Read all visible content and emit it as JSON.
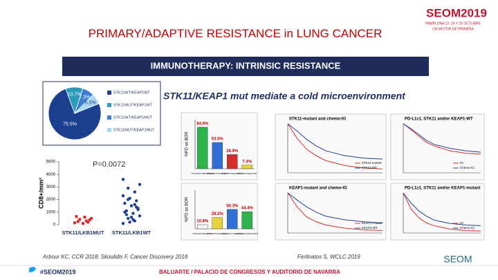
{
  "header": {
    "title_part1": "PRIMARY/ADAPTIVE",
    "title_part2": "RESISTANCE in LUNG CANCER"
  },
  "logo": {
    "name": "SEOM2019",
    "line1": "PAMPLONA 23, 24 Y 25 OCTUBRE",
    "line2": "UN MOTOR DE PRIMERA"
  },
  "banner": "IMMUNOTHERAPY: INTRINSIC RESISTANCE",
  "subtitle": "STK11/KEAP1 mut mediate a cold microenvironment",
  "citations": [
    "Arbour KC, CCR 2018; Skoulidis F, Cancer Discovery 2018",
    "Ferlinatos S, WCLC 2019"
  ],
  "footer": {
    "hashtag": "#SEOM2019",
    "venue": "BALUARTE / PALACIO DE CONGRESOS Y AUDITORIO DE NAVARRA",
    "brand": "SEOM"
  },
  "chart_data": [
    {
      "type": "pie",
      "categories": [
        "STK11WT/KEAP1WT",
        "STK11MUT/KEAP1WT",
        "STK11WT/KEAP1MUT",
        "STK11MUT/KEAP1MUT"
      ],
      "values": [
        75.5,
        10.7,
        7.3,
        6.5
      ],
      "value_labels": [
        "75.5%",
        "10.7%",
        "7.3%",
        "6.5%"
      ],
      "colors": [
        "#1d3f8f",
        "#2a9bb8",
        "#3c7fd0",
        "#a8d8f0"
      ]
    },
    {
      "type": "bar",
      "ylabel": "%PD as BOR",
      "categories": [
        "STK11MUT/KEAP1MUT",
        "STK11MUT/KEAP1WT",
        "STK11WT/KEAP1MUT",
        "STK11WT/KEAP1WT"
      ],
      "values": [
        84.6,
        53.5,
        28.9,
        7.4
      ],
      "value_labels": [
        "84.6%",
        "53.5%",
        "28.9%",
        "7.4%"
      ],
      "colors": [
        "#2cb34a",
        "#2f6fd8",
        "#d92b2b",
        "#e8d23a"
      ],
      "ylim": [
        0,
        100
      ]
    },
    {
      "type": "bar",
      "ylabel": "%PD as BOR",
      "categories": [
        "STK11WT/KEAP1WT",
        "STK11WT/KEAP1MUT",
        "STK11MUT/KEAP1WT",
        "STK11MUT/KEAP1MUT"
      ],
      "values": [
        10.8,
        29.2,
        50.3,
        44.4
      ],
      "value_labels": [
        "10.8%",
        "29.2%",
        "50.3%",
        "44.4%"
      ],
      "colors": [
        "#f2f2f2",
        "#e8d23a",
        "#2f6fd8",
        "#2cb34a"
      ],
      "ylim": [
        0,
        100
      ]
    },
    {
      "type": "strip",
      "ylabel": "CD8+/mm²",
      "annotation": "P=0.0072",
      "categories": [
        "STK11/LKB1MUT",
        "STK11/LKB1WT"
      ],
      "colors": [
        "#d92b2b",
        "#1d3f8f"
      ],
      "values": [
        [
          150,
          300,
          420,
          500,
          600,
          250,
          380,
          100,
          650,
          200
        ],
        [
          100,
          300,
          500,
          700,
          900,
          1100,
          1300,
          1500,
          1700,
          1900,
          2100,
          2300,
          2600,
          2900,
          3200,
          400,
          800,
          1200,
          600,
          1000,
          1400,
          200,
          3600,
          1600,
          2000
        ]
      ],
      "ylim": [
        0,
        5000
      ],
      "yticks": [
        0,
        1000,
        2000,
        3000,
        4000,
        5000
      ]
    },
    {
      "type": "km",
      "title": "STK11-mutant and chemo-IO",
      "x": [
        0,
        3,
        6,
        9,
        12,
        18,
        24,
        30
      ],
      "series": [
        {
          "name": "STK11-mutant",
          "color": "#d92b2b",
          "values": [
            100,
            70,
            48,
            35,
            25,
            15,
            10,
            8
          ]
        },
        {
          "name": "STK11-WT",
          "color": "#1d3f8f",
          "values": [
            100,
            85,
            68,
            55,
            45,
            35,
            30,
            28
          ]
        }
      ],
      "xlim": [
        0,
        30
      ],
      "ylim": [
        0,
        100
      ]
    },
    {
      "type": "km",
      "title": "PD-L1≥1, STK11 and/or KEAP1-WT",
      "x": [
        0,
        3,
        6,
        9,
        12,
        18,
        24,
        30
      ],
      "series": [
        {
          "name": "IO",
          "color": "#d92b2b",
          "values": [
            100,
            88,
            75,
            62,
            55,
            45,
            40,
            38
          ]
        },
        {
          "name": "Chemo-IO",
          "color": "#1d3f8f",
          "values": [
            100,
            90,
            78,
            66,
            58,
            50,
            45,
            42
          ]
        }
      ],
      "xlim": [
        0,
        30
      ],
      "ylim": [
        0,
        100
      ]
    },
    {
      "type": "km",
      "title": "KEAP1-mutant and chemo-IO",
      "x": [
        0,
        3,
        6,
        9,
        12,
        18,
        24,
        30
      ],
      "series": [
        {
          "name": "KEAP1-mutant",
          "color": "#d92b2b",
          "values": [
            100,
            65,
            40,
            28,
            20,
            12,
            8,
            6
          ]
        },
        {
          "name": "KEAP1-WT",
          "color": "#1d3f8f",
          "values": [
            100,
            82,
            65,
            52,
            42,
            33,
            28,
            25
          ]
        }
      ],
      "xlim": [
        0,
        30
      ],
      "ylim": [
        0,
        100
      ]
    },
    {
      "type": "km",
      "title": "PD-L1≥1, STK11 and/or KEAP1-mutant",
      "x": [
        0,
        3,
        6,
        9,
        12,
        18,
        24,
        30
      ],
      "series": [
        {
          "name": "IO",
          "color": "#d92b2b",
          "values": [
            100,
            60,
            38,
            25,
            18,
            10,
            6,
            5
          ]
        },
        {
          "name": "Chemo-IO",
          "color": "#1d3f8f",
          "values": [
            100,
            75,
            55,
            42,
            32,
            24,
            20,
            18
          ]
        }
      ],
      "xlim": [
        0,
        30
      ],
      "ylim": [
        0,
        100
      ]
    }
  ]
}
